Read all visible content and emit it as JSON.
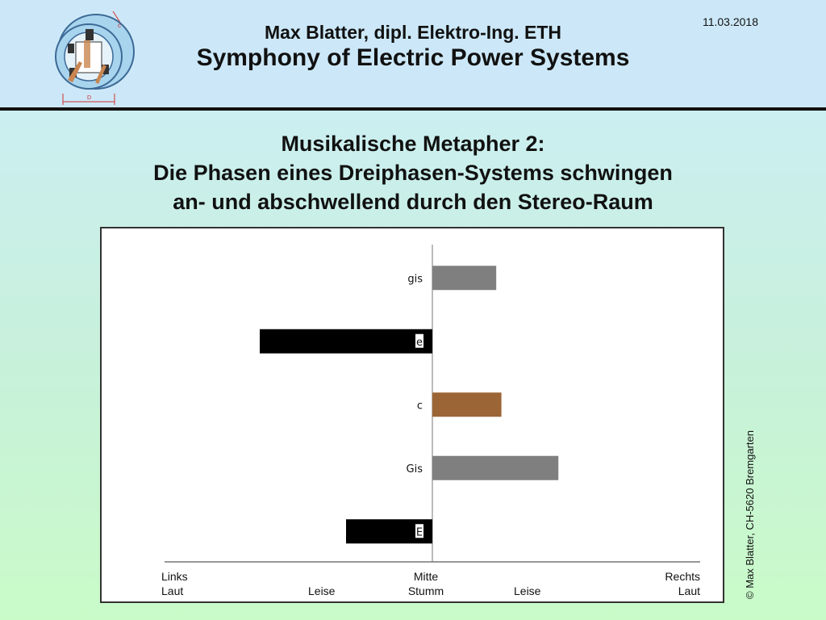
{
  "header": {
    "author": "Max Blatter, dipl. Elektro-Ing. ETH",
    "subtitle": "Symphony of Electric Power Systems",
    "date": "11.03.2018",
    "logo_labels": {
      "top": "c",
      "bottom": "D"
    }
  },
  "slide": {
    "title_line1": "Musikalische Metapher 2:",
    "title_line2": "Die Phasen eines Dreiphasen-Systems schwingen",
    "title_line3": "an- und abschwellend durch den Stereo-Raum"
  },
  "copyright": "© Max Blatter, CH-5620 Bremgarten",
  "chart_data": {
    "type": "bar",
    "orientation": "horizontal",
    "categories": [
      "gis",
      "e",
      "c",
      "Gis",
      "E"
    ],
    "values": [
      0.37,
      -1.0,
      0.4,
      0.73,
      -0.5
    ],
    "colors": [
      "#7f7f7f",
      "#000000",
      "#9c6535",
      "#7f7f7f",
      "#000000"
    ],
    "xlim": [
      -1.5,
      1.5
    ],
    "x_tick_labels": {
      "left": [
        "Links",
        "Laut"
      ],
      "left_mid": "Leise",
      "center": [
        "Mitte",
        "Stumm"
      ],
      "right_mid": "Leise",
      "right": [
        "Rechts",
        "Laut"
      ]
    },
    "grid": false
  }
}
